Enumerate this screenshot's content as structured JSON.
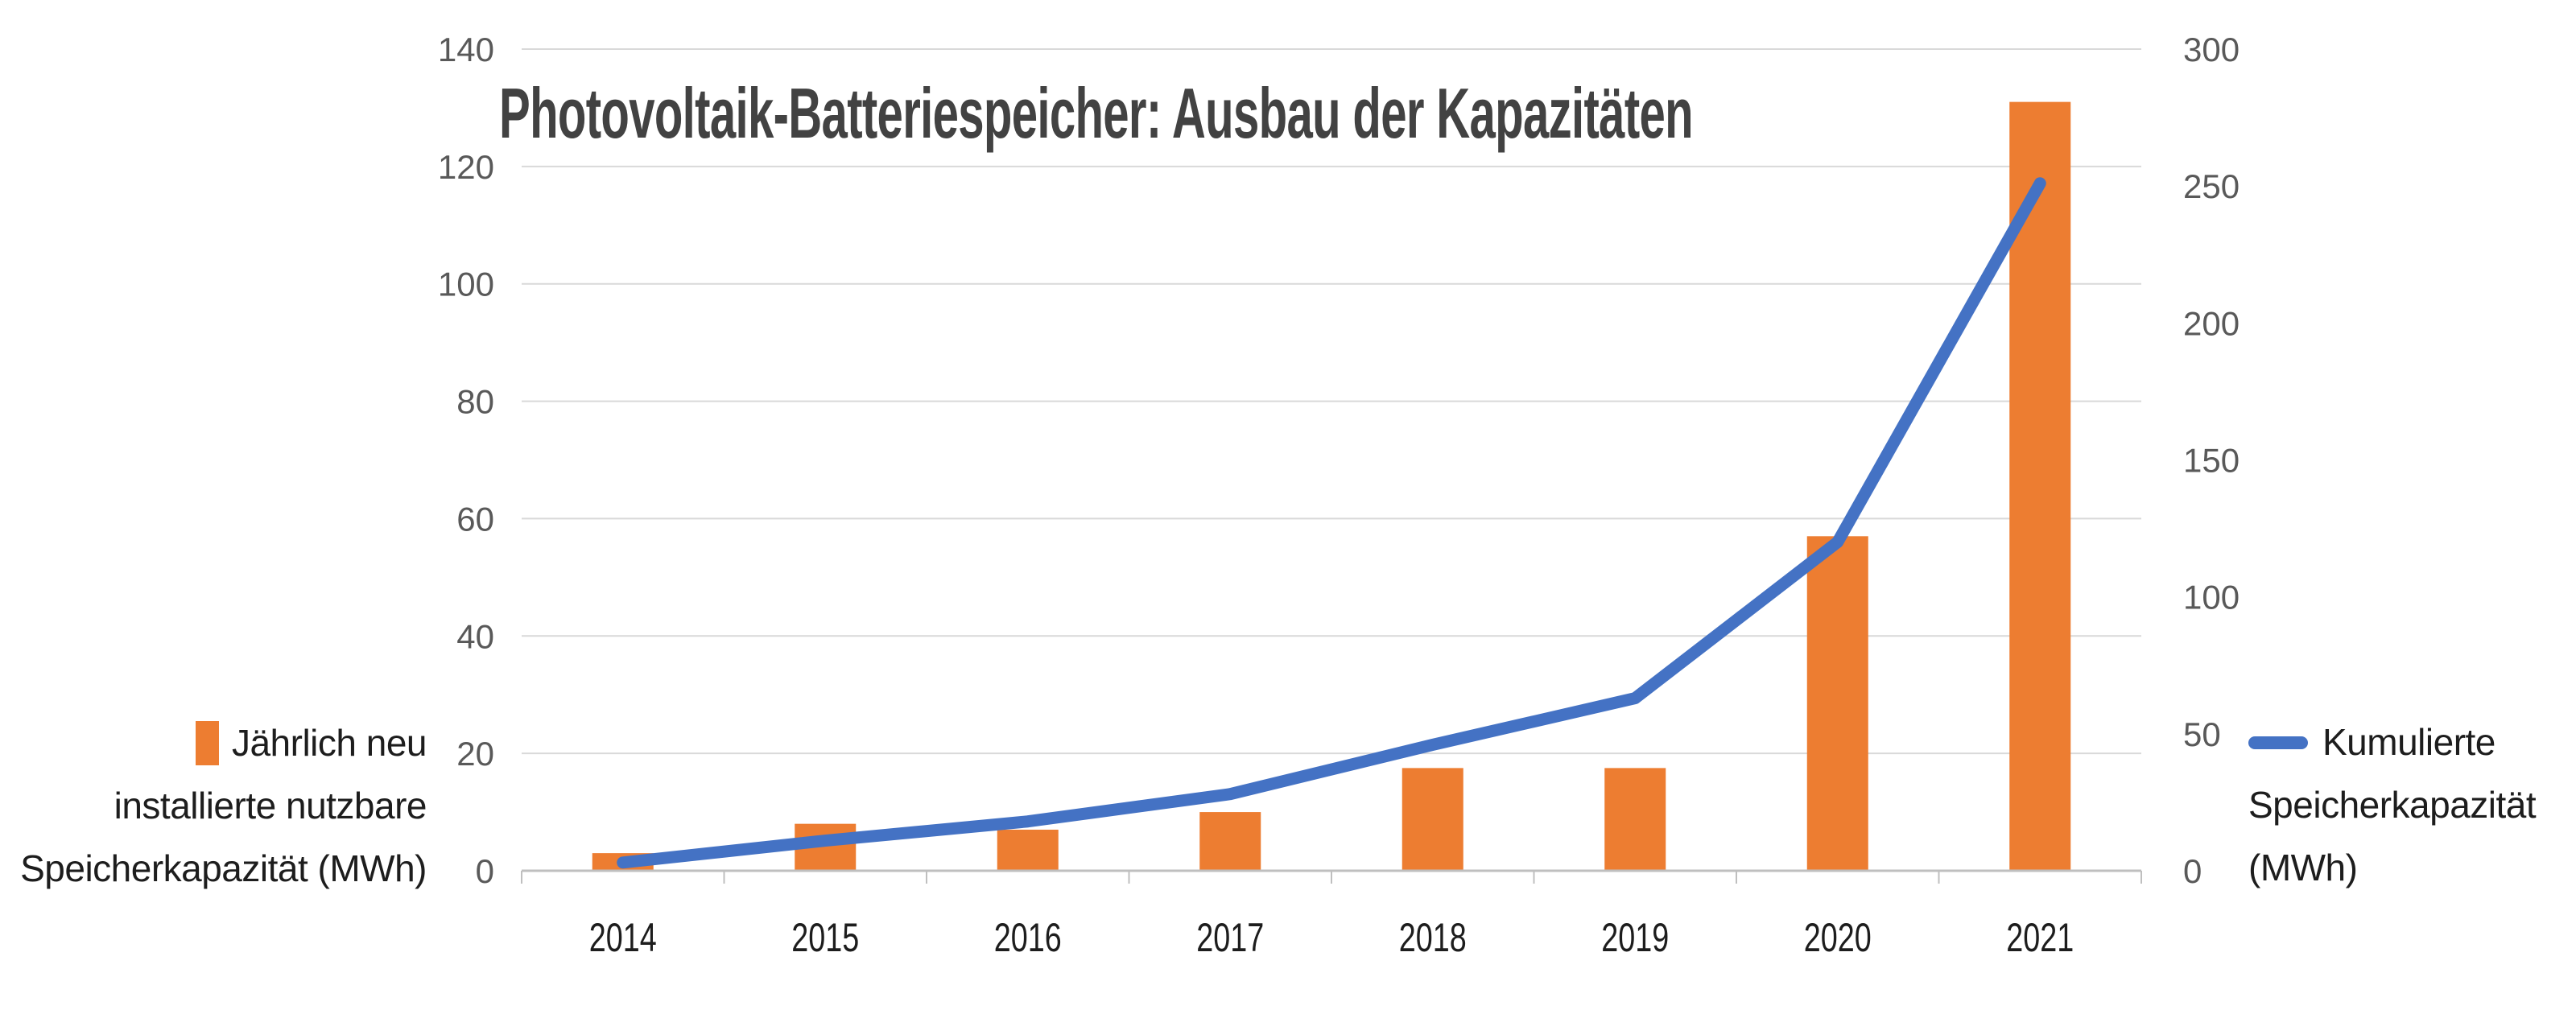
{
  "title": "Photovoltaik-Batteriespeicher: Ausbau der Kapazitäten",
  "colors": {
    "background": "#FFFFFF",
    "title": "#424242",
    "bar": "#ED7D31",
    "line": "#4472C4",
    "grid": "#D9D9D9",
    "axis": "#BFBFBF",
    "tick_label": "#595959",
    "year_label": "#1D1D1D",
    "legend_text": "#1D1D1D"
  },
  "legend_left": {
    "lines": [
      "Jährlich neu",
      "installierte nutzbare",
      "Speicherkapazität (MWh)"
    ]
  },
  "legend_right": {
    "lines": [
      "Kumulierte",
      "Speicherkapazität",
      "(MWh)"
    ]
  },
  "chart_data": {
    "type": "combo-bar-line",
    "categories": [
      "2014",
      "2015",
      "2016",
      "2017",
      "2018",
      "2019",
      "2020",
      "2021"
    ],
    "series": [
      {
        "name": "Jährlich neu installierte nutzbare Speicherkapazität (MWh)",
        "type": "bar",
        "axis": "left",
        "color": "#ED7D31",
        "values": [
          3,
          8,
          7,
          10,
          17.5,
          17.5,
          57,
          131
        ]
      },
      {
        "name": "Kumulierte Speicherkapazität (MWh)",
        "type": "line",
        "axis": "right",
        "color": "#4472C4",
        "values": [
          3,
          11,
          18,
          28,
          46,
          63,
          120,
          251
        ]
      }
    ],
    "left_axis": {
      "min": 0,
      "max": 140,
      "step": 20,
      "ticks": [
        0,
        20,
        40,
        60,
        80,
        100,
        120,
        140
      ]
    },
    "right_axis": {
      "min": 0,
      "max": 300,
      "step": 50,
      "ticks": [
        0,
        50,
        100,
        150,
        200,
        250,
        300
      ]
    },
    "grid": true,
    "legend_left_position": "middle-left",
    "legend_right_position": "middle-right"
  }
}
